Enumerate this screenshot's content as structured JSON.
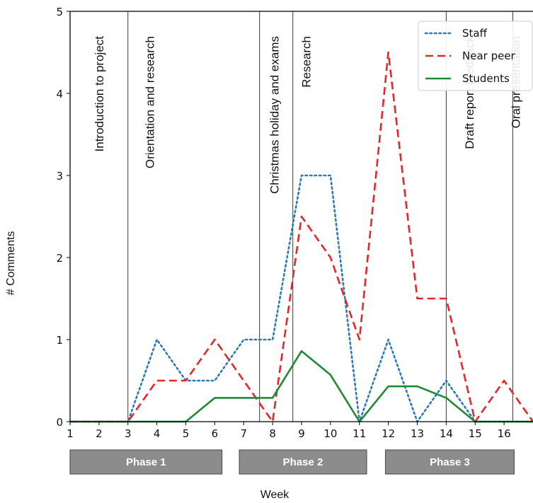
{
  "chart_data": {
    "type": "line",
    "xlabel": "Week",
    "ylabel": "# Comments",
    "xlim": [
      1,
      17
    ],
    "ylim": [
      0,
      5
    ],
    "x_ticks": [
      1,
      2,
      3,
      4,
      5,
      6,
      7,
      8,
      9,
      10,
      11,
      12,
      13,
      14,
      15,
      16
    ],
    "y_ticks": [
      0,
      1,
      2,
      3,
      4,
      5
    ],
    "legend_position": "top-right",
    "x": [
      1,
      2,
      3,
      4,
      5,
      6,
      7,
      8,
      9,
      10,
      11,
      12,
      13,
      14,
      15,
      16,
      17
    ],
    "series": [
      {
        "name": "Staff",
        "style": "dotted",
        "color": "#2a7ab9",
        "values": [
          0,
          0,
          0,
          1,
          0.5,
          0.5,
          1,
          1,
          3,
          3,
          0,
          1,
          0,
          0.5,
          0,
          0,
          0
        ]
      },
      {
        "name": "Near peer",
        "style": "dashed",
        "color": "#e6262b",
        "values": [
          0,
          0,
          0,
          0.5,
          0.5,
          1,
          0.5,
          0,
          2.5,
          2,
          1,
          4.5,
          1.5,
          1.5,
          0,
          0.5,
          0
        ]
      },
      {
        "name": "Students",
        "style": "solid",
        "color": "#1f8a36",
        "values": [
          0,
          0,
          0,
          0,
          0,
          0.29,
          0.29,
          0.29,
          0.86,
          0.57,
          0,
          0.43,
          0.43,
          0.29,
          0,
          0,
          0
        ]
      }
    ],
    "vlines": [
      {
        "x": 3,
        "label": ""
      },
      {
        "x": 7.55,
        "label": ""
      },
      {
        "x": 8.7,
        "label": ""
      },
      {
        "x": 14,
        "label": ""
      },
      {
        "x": 16.3,
        "label": ""
      }
    ],
    "annotations": [
      {
        "text": "Introduction to project",
        "x": 2.15
      },
      {
        "text": "Orientation and research",
        "x": 3.9
      },
      {
        "text": "Christmas holiday and exams",
        "x": 8.2
      },
      {
        "text": "Research",
        "x": 9.3
      },
      {
        "text": "Draft report feedback",
        "x": 14.95
      },
      {
        "text": "Oral presentation",
        "x": 16.55
      }
    ],
    "phases": [
      {
        "label": "Phase 1",
        "start": 1,
        "end": 6.25
      },
      {
        "label": "Phase 2",
        "start": 6.85,
        "end": 11.25
      },
      {
        "label": "Phase 3",
        "start": 11.9,
        "end": 16.35
      }
    ]
  }
}
